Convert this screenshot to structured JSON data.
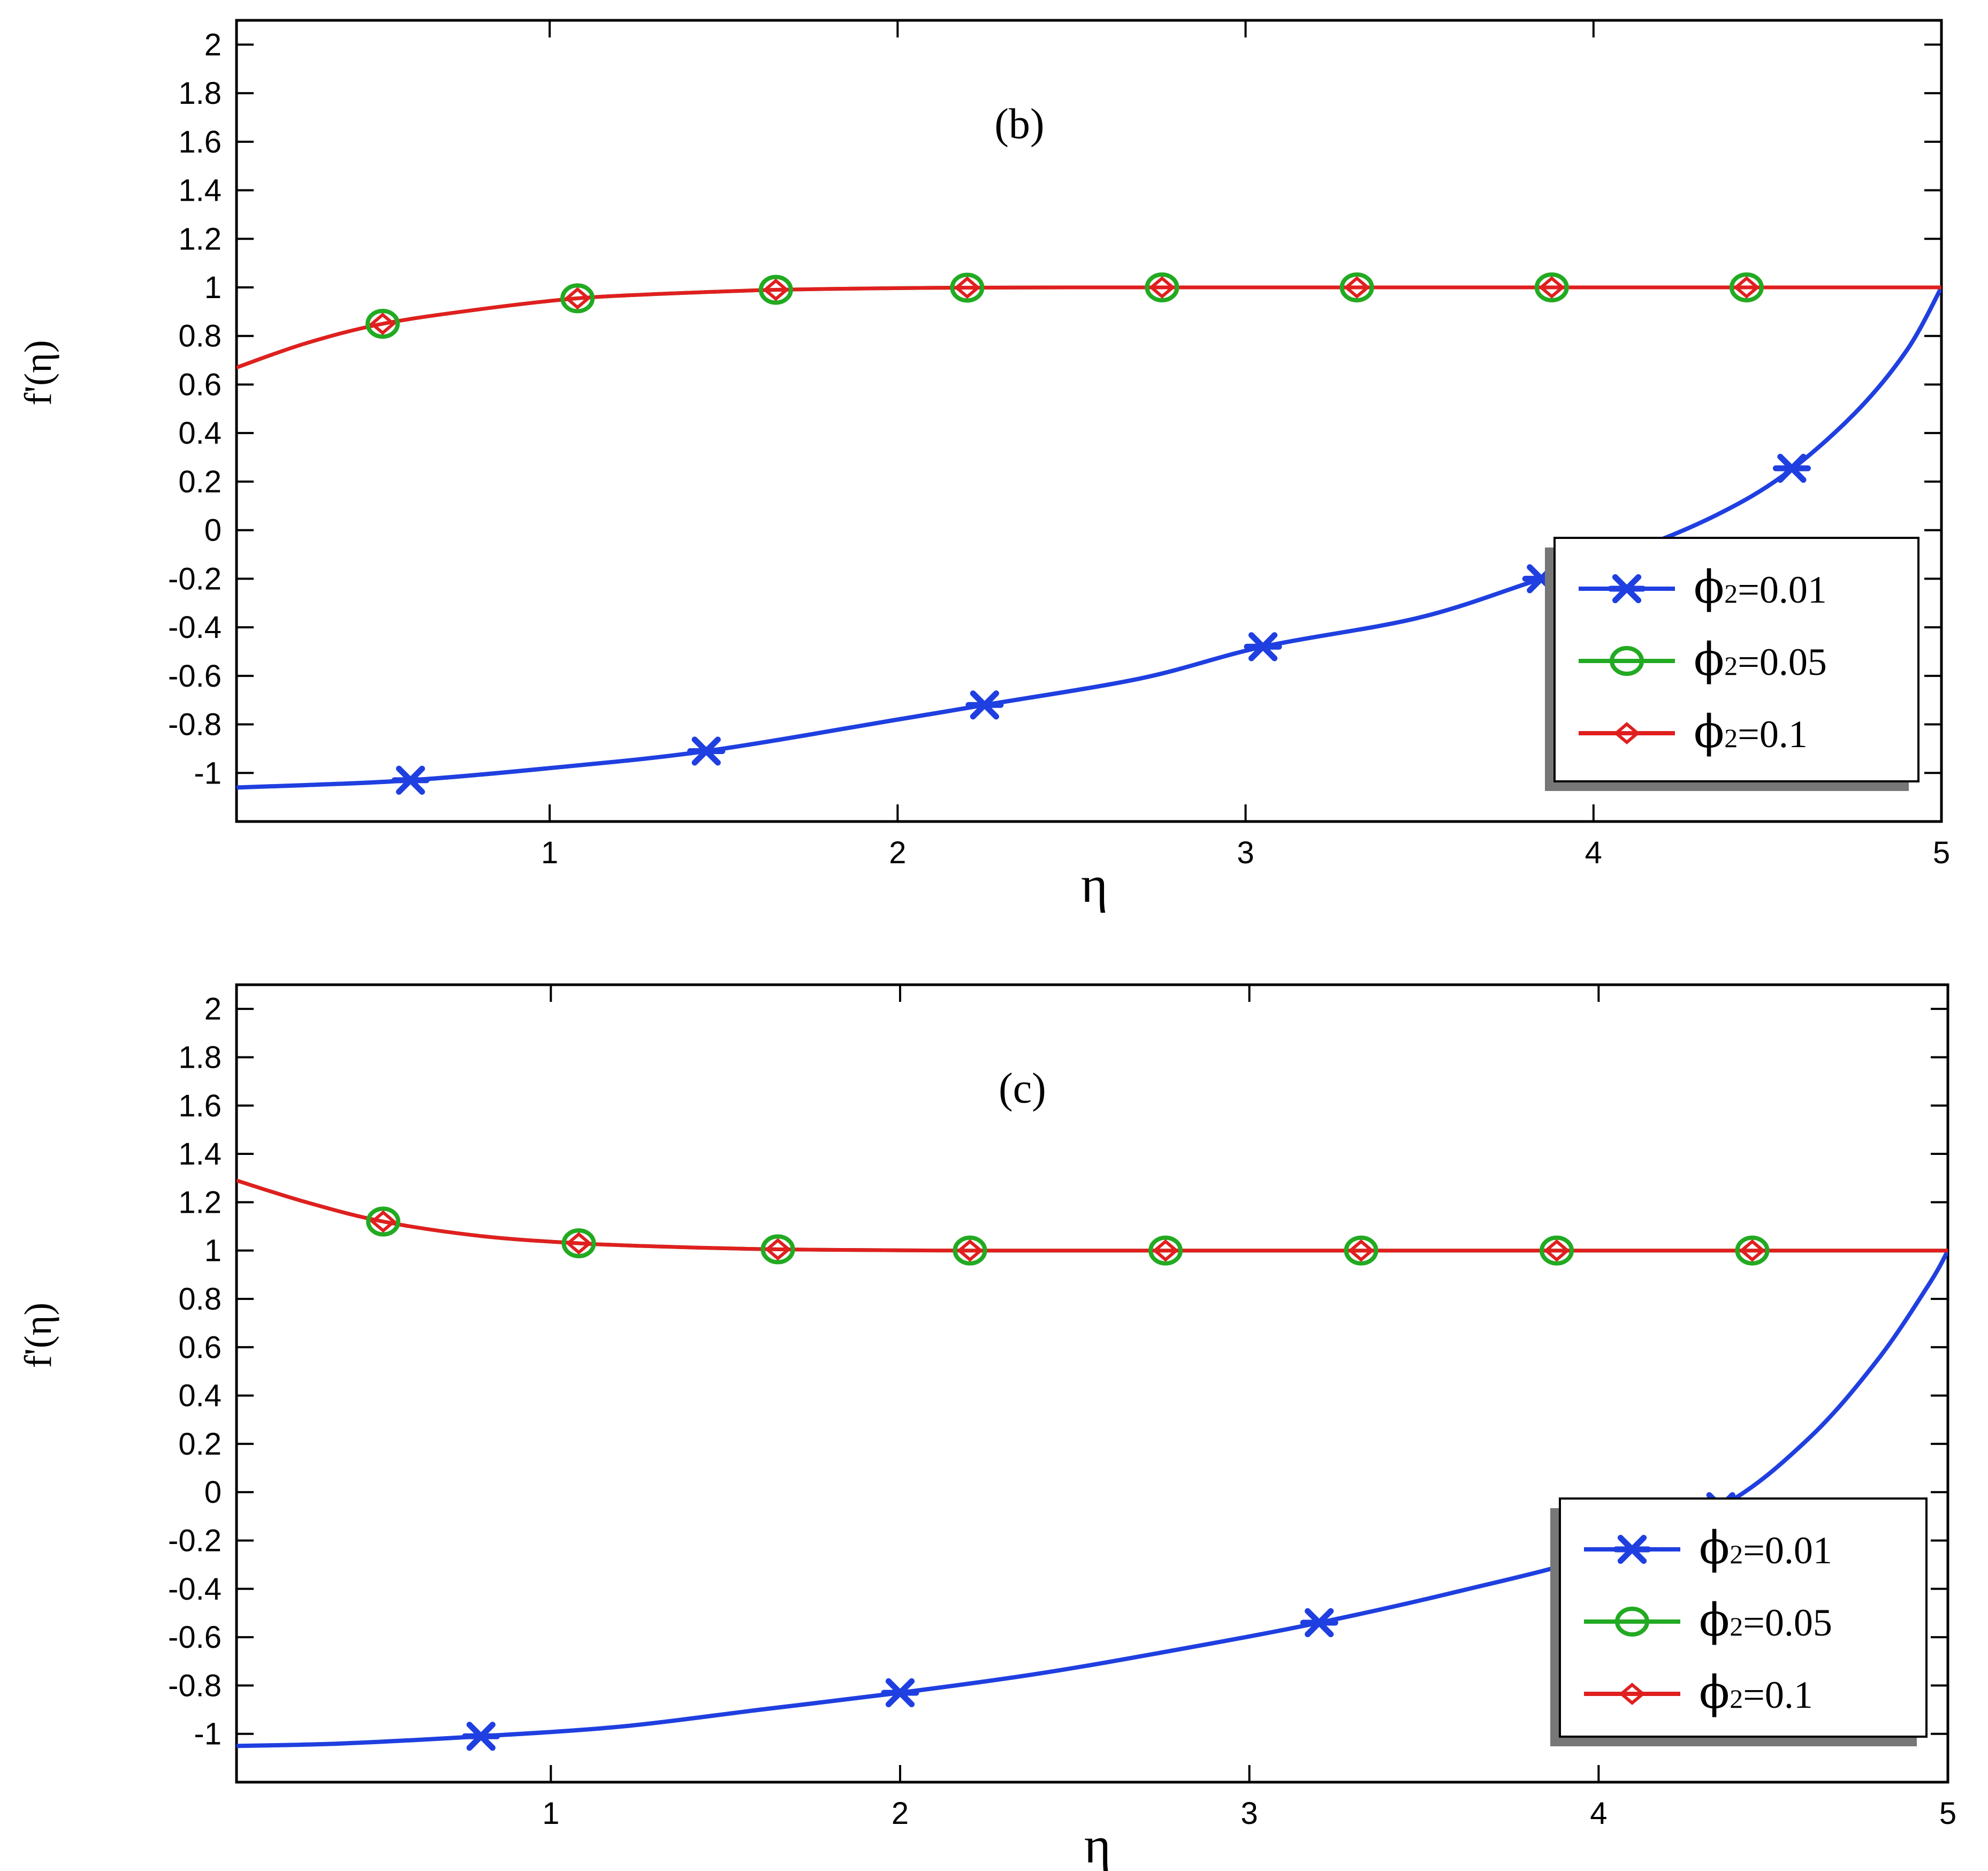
{
  "chart_data": [
    {
      "type": "line",
      "panel_label": "(b)",
      "xlabel": "η",
      "ylabel": "f'(η)",
      "xlim": [
        0.1,
        5
      ],
      "ylim": [
        -1.2,
        2.1
      ],
      "xticks": [
        1,
        2,
        3,
        4,
        5
      ],
      "yticks": [
        -1,
        -0.8,
        -0.6,
        -0.4,
        -0.2,
        0,
        0.2,
        0.4,
        0.6,
        0.8,
        1,
        1.2,
        1.4,
        1.6,
        1.8,
        2
      ],
      "grid": false,
      "legend_position": "lower-right",
      "series": [
        {
          "name": "ϕ2=0.01",
          "name_prefix": "ϕ",
          "name_sub": "2",
          "name_suffix": "=0.01",
          "color": "#1f3fe0",
          "marker": "asterisk",
          "x": [
            0.1,
            0.3,
            0.6,
            1.0,
            1.45,
            2.0,
            2.25,
            2.7,
            3.05,
            3.5,
            3.85,
            4.1,
            4.35,
            4.55,
            4.75,
            4.9,
            5.0
          ],
          "y": [
            -1.06,
            -1.05,
            -1.03,
            -0.98,
            -0.91,
            -0.78,
            -0.72,
            -0.61,
            -0.48,
            -0.36,
            -0.2,
            -0.09,
            0.06,
            0.23,
            0.48,
            0.74,
            1.0
          ],
          "markers_x": [
            0.6,
            1.45,
            2.25,
            3.05,
            3.85,
            4.57
          ]
        },
        {
          "name": "ϕ2=0.05",
          "name_prefix": "ϕ",
          "name_sub": "2",
          "name_suffix": "=0.05",
          "color": "#22aa22",
          "marker": "circle",
          "x": [
            0.1,
            0.3,
            0.52,
            0.8,
            1.08,
            1.35,
            1.65,
            2.0,
            2.2,
            2.5,
            3.0,
            3.5,
            4.0,
            4.5,
            5.0
          ],
          "y": [
            0.67,
            0.77,
            0.85,
            0.91,
            0.955,
            0.975,
            0.99,
            0.997,
            0.999,
            1.0,
            1.0,
            1.0,
            1.0,
            1.0,
            1.0
          ],
          "markers_x": [
            0.52,
            1.08,
            1.65,
            2.2,
            2.76,
            3.32,
            3.88,
            4.44
          ]
        },
        {
          "name": "ϕ2=0.1",
          "name_prefix": "ϕ",
          "name_sub": "2",
          "name_suffix": "=0.1",
          "color": "#e01f1f",
          "marker": "diamond",
          "x": [
            0.1,
            0.3,
            0.52,
            0.8,
            1.08,
            1.35,
            1.65,
            2.0,
            2.2,
            2.5,
            3.0,
            3.5,
            4.0,
            4.5,
            5.0
          ],
          "y": [
            0.67,
            0.77,
            0.85,
            0.91,
            0.955,
            0.975,
            0.99,
            0.997,
            0.999,
            1.0,
            1.0,
            1.0,
            1.0,
            1.0,
            1.0
          ],
          "markers_x": [
            0.52,
            1.08,
            1.65,
            2.2,
            2.76,
            3.32,
            3.88,
            4.44
          ]
        }
      ]
    },
    {
      "type": "line",
      "panel_label": "(c)",
      "xlabel": "η",
      "ylabel": "f'(η)",
      "xlim": [
        0.1,
        5
      ],
      "ylim": [
        -1.2,
        2.1
      ],
      "xticks": [
        1,
        2,
        3,
        4,
        5
      ],
      "yticks": [
        -1,
        -0.8,
        -0.6,
        -0.4,
        -0.2,
        0,
        0.2,
        0.4,
        0.6,
        0.8,
        1,
        1.2,
        1.4,
        1.6,
        1.8,
        2
      ],
      "grid": false,
      "legend_position": "lower-right",
      "series": [
        {
          "name": "ϕ2=0.01",
          "name_prefix": "ϕ",
          "name_sub": "2",
          "name_suffix": "=0.01",
          "color": "#1f3fe0",
          "marker": "asterisk",
          "x": [
            0.1,
            0.4,
            0.8,
            1.2,
            1.6,
            2.0,
            2.4,
            2.8,
            3.2,
            3.6,
            4.0,
            4.35,
            4.6,
            4.8,
            4.95,
            5.0
          ],
          "y": [
            -1.05,
            -1.04,
            -1.01,
            -0.97,
            -0.9,
            -0.83,
            -0.75,
            -0.65,
            -0.54,
            -0.41,
            -0.26,
            -0.06,
            0.22,
            0.55,
            0.87,
            1.0
          ],
          "markers_x": [
            0.8,
            2.0,
            3.2,
            4.35
          ]
        },
        {
          "name": "ϕ2=0.05",
          "name_prefix": "ϕ",
          "name_sub": "2",
          "name_suffix": "=0.05",
          "color": "#22aa22",
          "marker": "circle",
          "x": [
            0.1,
            0.3,
            0.52,
            0.8,
            1.08,
            1.35,
            1.65,
            2.0,
            2.2,
            2.5,
            3.0,
            3.5,
            4.0,
            4.5,
            5.0
          ],
          "y": [
            1.29,
            1.2,
            1.12,
            1.06,
            1.03,
            1.015,
            1.005,
            1.001,
            1.0,
            1.0,
            1.0,
            1.0,
            1.0,
            1.0,
            1.0
          ],
          "markers_x": [
            0.52,
            1.08,
            1.65,
            2.2,
            2.76,
            3.32,
            3.88,
            4.44
          ]
        },
        {
          "name": "ϕ2=0.1",
          "name_prefix": "ϕ",
          "name_sub": "2",
          "name_suffix": "=0.1",
          "color": "#e01f1f",
          "marker": "diamond",
          "x": [
            0.1,
            0.3,
            0.52,
            0.8,
            1.08,
            1.35,
            1.65,
            2.0,
            2.2,
            2.5,
            3.0,
            3.5,
            4.0,
            4.5,
            5.0
          ],
          "y": [
            1.29,
            1.2,
            1.12,
            1.06,
            1.03,
            1.015,
            1.005,
            1.001,
            1.0,
            1.0,
            1.0,
            1.0,
            1.0,
            1.0,
            1.0
          ],
          "markers_x": [
            0.52,
            1.08,
            1.65,
            2.2,
            2.76,
            3.32,
            3.88,
            4.44
          ]
        }
      ]
    }
  ]
}
